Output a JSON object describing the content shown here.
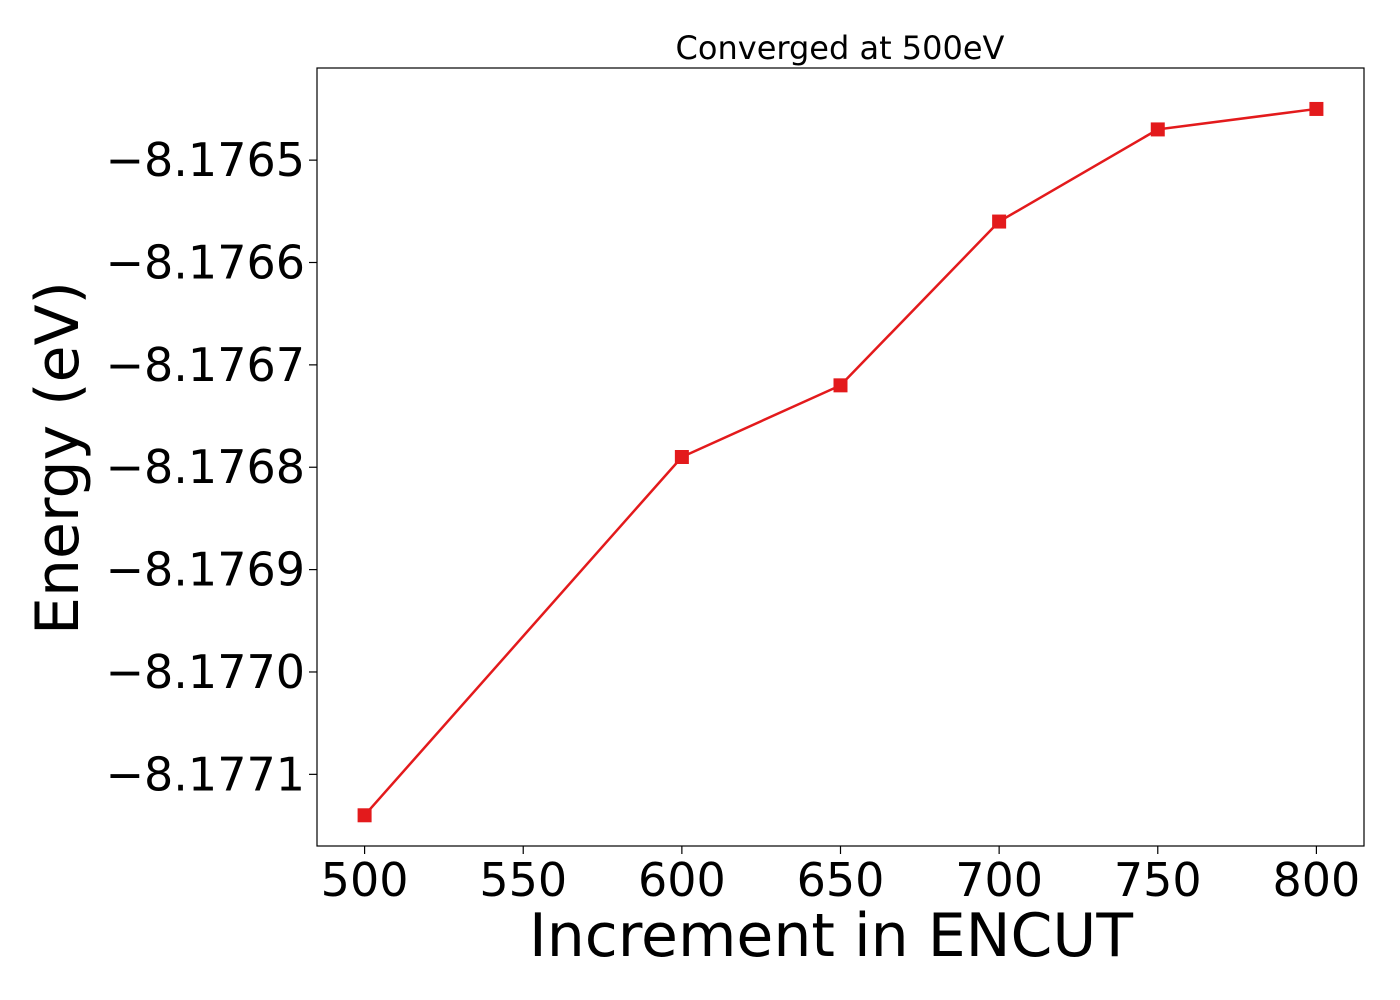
{
  "chart_data": {
    "type": "line",
    "title": "Converged at 500eV",
    "xlabel": "Increment in ENCUT",
    "ylabel": "Energy (eV)",
    "x": [
      500,
      600,
      650,
      700,
      750,
      800
    ],
    "series": [
      {
        "values": [
          -8.17714,
          -8.17679,
          -8.17672,
          -8.17656,
          -8.17647,
          -8.17645
        ],
        "color": "#e31a1c",
        "marker": "square"
      }
    ],
    "xlim": [
      485,
      815
    ],
    "ylim": [
      -8.17717,
      -8.17641
    ],
    "xticks": [
      500,
      550,
      600,
      650,
      700,
      750,
      800
    ],
    "xtick_labels": [
      "500",
      "550",
      "600",
      "650",
      "700",
      "750",
      "800"
    ],
    "yticks": [
      -8.1771,
      -8.177,
      -8.1769,
      -8.1768,
      -8.1767,
      -8.1766,
      -8.1765
    ],
    "ytick_labels": [
      "−8.1771",
      "−8.1770",
      "−8.1769",
      "−8.1768",
      "−8.1767",
      "−8.1766",
      "−8.1765"
    ],
    "grid": false,
    "legend": false
  }
}
